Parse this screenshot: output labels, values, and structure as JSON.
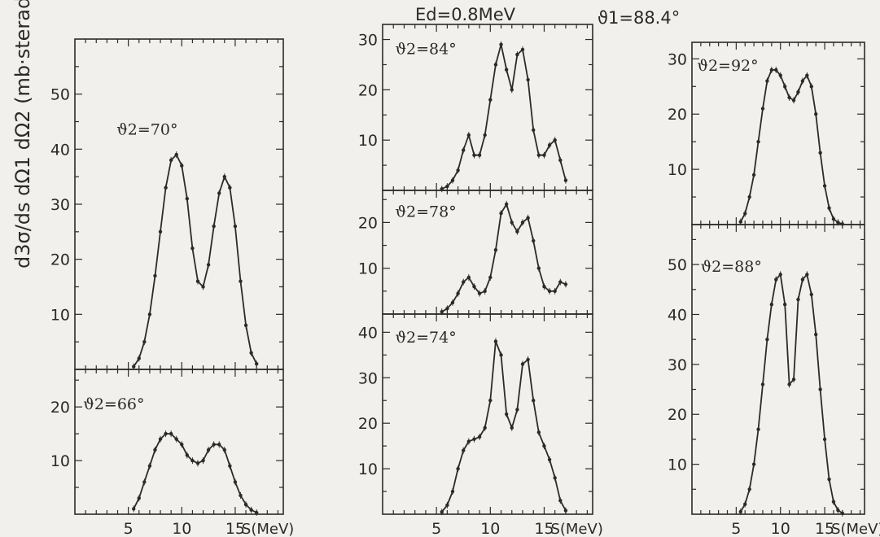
{
  "header": {
    "energy": "Ed=0.8MeV",
    "theta1": "ϑ1=88.4°"
  },
  "ylabel": "d3σ/ds dΩ1 dΩ2 (mb·sterad-2·MeV-1)",
  "xlabel": "S(MeV)",
  "line_color": "#2b2b2b",
  "chart_data": [
    {
      "type": "line",
      "label": "ϑ2=70°",
      "xlim": [
        0,
        19.5
      ],
      "ylim": [
        0,
        60
      ],
      "yticks": [
        10,
        20,
        30,
        40,
        50
      ],
      "x": [
        5.5,
        6,
        6.5,
        7,
        7.5,
        8,
        8.5,
        9,
        9.5,
        10,
        10.5,
        11,
        11.5,
        12,
        12.5,
        13,
        13.5,
        14,
        14.5,
        15,
        15.5,
        16,
        16.5,
        17
      ],
      "values": [
        0.5,
        2,
        5,
        10,
        17,
        25,
        33,
        38,
        39,
        37,
        31,
        22,
        16,
        15,
        19,
        26,
        32,
        35,
        33,
        26,
        16,
        8,
        3,
        1
      ]
    },
    {
      "type": "line",
      "label": "ϑ2=66°",
      "xlim": [
        0,
        19.5
      ],
      "ylim": [
        0,
        27
      ],
      "yticks": [
        10,
        20
      ],
      "x": [
        5.5,
        6,
        6.5,
        7,
        7.5,
        8,
        8.5,
        9,
        9.5,
        10,
        10.5,
        11,
        11.5,
        12,
        12.5,
        13,
        13.5,
        14,
        14.5,
        15,
        15.5,
        16,
        16.5,
        17
      ],
      "values": [
        1,
        3,
        6,
        9,
        12,
        14,
        15,
        15,
        14,
        13,
        11,
        10,
        9.5,
        10,
        12,
        13,
        13,
        12,
        9,
        6,
        3.5,
        1.8,
        0.8,
        0.3
      ]
    },
    {
      "type": "line",
      "label": "ϑ2=84°",
      "xlim": [
        0,
        19.5
      ],
      "ylim": [
        0,
        33
      ],
      "yticks": [
        10,
        20,
        30
      ],
      "x": [
        5.5,
        6,
        6.5,
        7,
        7.5,
        8,
        8.5,
        9,
        9.5,
        10,
        10.5,
        11,
        11.5,
        12,
        12.5,
        13,
        13.5,
        14,
        14.5,
        15,
        15.5,
        16,
        16.5,
        17
      ],
      "values": [
        0.3,
        0.8,
        2,
        4,
        8,
        11,
        7,
        7,
        11,
        18,
        25,
        29,
        24,
        20,
        27,
        28,
        22,
        12,
        7,
        7,
        9,
        10,
        6,
        2
      ]
    },
    {
      "type": "line",
      "label": "ϑ2=78°",
      "xlim": [
        0,
        19.5
      ],
      "ylim": [
        0,
        27
      ],
      "yticks": [
        10,
        20
      ],
      "x": [
        5.5,
        6,
        6.5,
        7,
        7.5,
        8,
        8.5,
        9,
        9.5,
        10,
        10.5,
        11,
        11.5,
        12,
        12.5,
        13,
        13.5,
        14,
        14.5,
        15,
        15.5,
        16,
        16.5,
        17
      ],
      "values": [
        0.5,
        1.2,
        2.5,
        4.5,
        7,
        8,
        6,
        4.5,
        5,
        8,
        14,
        22,
        24,
        20,
        18,
        20,
        21,
        16,
        10,
        6,
        5,
        5,
        7,
        6.5
      ]
    },
    {
      "type": "line",
      "label": "ϑ2=74°",
      "xlim": [
        0,
        19.5
      ],
      "ylim": [
        0,
        44
      ],
      "yticks": [
        10,
        20,
        30,
        40
      ],
      "x": [
        5.5,
        6,
        6.5,
        7,
        7.5,
        8,
        8.5,
        9,
        9.5,
        10,
        10.5,
        11,
        11.5,
        12,
        12.5,
        13,
        13.5,
        14,
        14.5,
        15,
        15.5,
        16,
        16.5,
        17
      ],
      "values": [
        0.5,
        2,
        5,
        10,
        14,
        16,
        16.5,
        17,
        19,
        25,
        38,
        35,
        22,
        19,
        23,
        33,
        34,
        25,
        18,
        15,
        12,
        8,
        3,
        0.8
      ]
    },
    {
      "type": "line",
      "label": "ϑ2=92°",
      "xlim": [
        0,
        19.5
      ],
      "ylim": [
        0,
        33
      ],
      "yticks": [
        10,
        20,
        30
      ],
      "x": [
        5.5,
        6,
        6.5,
        7,
        7.5,
        8,
        8.5,
        9,
        9.5,
        10,
        10.5,
        11,
        11.5,
        12,
        12.5,
        13,
        13.5,
        14,
        14.5,
        15,
        15.5,
        16,
        16.5,
        17
      ],
      "values": [
        0.5,
        2,
        5,
        9,
        15,
        21,
        26,
        28,
        28,
        27,
        25,
        23,
        22.5,
        24,
        26,
        27,
        25,
        20,
        13,
        7,
        3,
        1,
        0.4,
        0.1
      ]
    },
    {
      "type": "line",
      "label": "ϑ2=88°",
      "xlim": [
        0,
        19.5
      ],
      "ylim": [
        0,
        58
      ],
      "yticks": [
        10,
        20,
        30,
        40,
        50
      ],
      "x": [
        5.5,
        6,
        6.5,
        7,
        7.5,
        8,
        8.5,
        9,
        9.5,
        10,
        10.5,
        11,
        11.5,
        12,
        12.5,
        13,
        13.5,
        14,
        14.5,
        15,
        15.5,
        16,
        16.5,
        17
      ],
      "values": [
        0.5,
        2,
        5,
        10,
        17,
        26,
        35,
        42,
        47,
        48,
        42,
        26,
        27,
        43,
        47,
        48,
        44,
        36,
        25,
        15,
        7,
        2.5,
        0.8,
        0.2
      ]
    }
  ]
}
